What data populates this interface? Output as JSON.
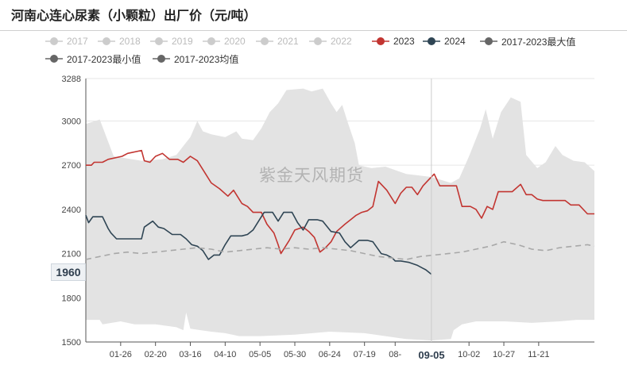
{
  "title": "河南心连心尿素（小颗粒）出厂价（元/吨）",
  "watermark": "紫金天风期货",
  "cursor": {
    "y_value": "1960",
    "x_label": "09-05"
  },
  "legend": [
    {
      "label": "2017",
      "color": "#cccccc",
      "line": false
    },
    {
      "label": "2018",
      "color": "#cccccc",
      "line": false
    },
    {
      "label": "2019",
      "color": "#cccccc",
      "line": false
    },
    {
      "label": "2020",
      "color": "#cccccc",
      "line": false
    },
    {
      "label": "2021",
      "color": "#cccccc",
      "line": false
    },
    {
      "label": "2022",
      "color": "#cccccc",
      "line": false
    },
    {
      "label": "2023",
      "color": "#c23531",
      "line": false
    },
    {
      "label": "2024",
      "color": "#2f4554",
      "line": false
    },
    {
      "label": "2017-2023最大值",
      "color": "#666666",
      "line": true
    },
    {
      "label": "2017-2023最小值",
      "color": "#666666",
      "line": true
    },
    {
      "label": "2017-2023均值",
      "color": "#666666",
      "line": true
    }
  ],
  "chart_data": {
    "type": "line",
    "ylim": [
      1500,
      3288
    ],
    "y_ticks": [
      1500,
      1800,
      2100,
      2400,
      2700,
      3000,
      3288
    ],
    "x_range": [
      0,
      365
    ],
    "x_ticks": [
      {
        "label": "01-26",
        "x": 25
      },
      {
        "label": "02-20",
        "x": 50
      },
      {
        "label": "03-16",
        "x": 75
      },
      {
        "label": "04-10",
        "x": 100
      },
      {
        "label": "05-05",
        "x": 125
      },
      {
        "label": "05-30",
        "x": 150
      },
      {
        "label": "06-24",
        "x": 175
      },
      {
        "label": "07-19",
        "x": 200
      },
      {
        "label": "08-",
        "x": 222
      },
      {
        "label": "10-02",
        "x": 275
      },
      {
        "label": "10-27",
        "x": 300
      },
      {
        "label": "11-21",
        "x": 325
      }
    ],
    "cursor_x": 248,
    "band": {
      "max": [
        [
          0,
          2980
        ],
        [
          10,
          3010
        ],
        [
          20,
          2760
        ],
        [
          40,
          2730
        ],
        [
          55,
          2740
        ],
        [
          65,
          2770
        ],
        [
          70,
          2830
        ],
        [
          75,
          2890
        ],
        [
          80,
          3000
        ],
        [
          84,
          2930
        ],
        [
          90,
          2910
        ],
        [
          100,
          2890
        ],
        [
          108,
          2930
        ],
        [
          112,
          2880
        ],
        [
          120,
          2870
        ],
        [
          126,
          2950
        ],
        [
          132,
          3060
        ],
        [
          138,
          3120
        ],
        [
          144,
          3210
        ],
        [
          156,
          3220
        ],
        [
          162,
          3200
        ],
        [
          170,
          3220
        ],
        [
          176,
          3120
        ],
        [
          180,
          3060
        ],
        [
          184,
          3110
        ],
        [
          188,
          2990
        ],
        [
          193,
          2850
        ],
        [
          196,
          2700
        ],
        [
          205,
          2680
        ],
        [
          215,
          2690
        ],
        [
          230,
          2640
        ],
        [
          248,
          2620
        ],
        [
          262,
          2580
        ],
        [
          268,
          2610
        ],
        [
          275,
          2760
        ],
        [
          283,
          2950
        ],
        [
          287,
          3080
        ],
        [
          292,
          2880
        ],
        [
          298,
          3060
        ],
        [
          305,
          3160
        ],
        [
          312,
          3130
        ],
        [
          316,
          2770
        ],
        [
          324,
          2680
        ],
        [
          330,
          2720
        ],
        [
          337,
          2830
        ],
        [
          342,
          2770
        ],
        [
          350,
          2730
        ],
        [
          358,
          2720
        ],
        [
          365,
          2660
        ]
      ],
      "min": [
        [
          0,
          1650
        ],
        [
          10,
          1650
        ],
        [
          12,
          1620
        ],
        [
          25,
          1640
        ],
        [
          35,
          1620
        ],
        [
          50,
          1620
        ],
        [
          65,
          1600
        ],
        [
          70,
          1580
        ],
        [
          72,
          1700
        ],
        [
          75,
          1590
        ],
        [
          90,
          1570
        ],
        [
          100,
          1560
        ],
        [
          110,
          1540
        ],
        [
          125,
          1540
        ],
        [
          150,
          1550
        ],
        [
          175,
          1570
        ],
        [
          200,
          1560
        ],
        [
          215,
          1540
        ],
        [
          230,
          1520
        ],
        [
          248,
          1510
        ],
        [
          262,
          1520
        ],
        [
          264,
          1580
        ],
        [
          270,
          1620
        ],
        [
          280,
          1640
        ],
        [
          300,
          1640
        ],
        [
          320,
          1630
        ],
        [
          340,
          1640
        ],
        [
          352,
          1650
        ],
        [
          365,
          1650
        ]
      ]
    },
    "series": [
      {
        "name": "2023",
        "color": "#c23531",
        "width": 1.6,
        "dash": false,
        "values": [
          [
            0,
            2700
          ],
          [
            4,
            2700
          ],
          [
            6,
            2720
          ],
          [
            12,
            2720
          ],
          [
            16,
            2740
          ],
          [
            26,
            2760
          ],
          [
            30,
            2780
          ],
          [
            40,
            2800
          ],
          [
            42,
            2730
          ],
          [
            46,
            2720
          ],
          [
            50,
            2760
          ],
          [
            55,
            2780
          ],
          [
            60,
            2740
          ],
          [
            66,
            2740
          ],
          [
            70,
            2720
          ],
          [
            75,
            2760
          ],
          [
            80,
            2730
          ],
          [
            86,
            2640
          ],
          [
            90,
            2580
          ],
          [
            96,
            2540
          ],
          [
            102,
            2490
          ],
          [
            106,
            2530
          ],
          [
            112,
            2440
          ],
          [
            116,
            2420
          ],
          [
            120,
            2380
          ],
          [
            126,
            2380
          ],
          [
            130,
            2300
          ],
          [
            135,
            2240
          ],
          [
            138,
            2160
          ],
          [
            140,
            2100
          ],
          [
            144,
            2160
          ],
          [
            146,
            2190
          ],
          [
            150,
            2260
          ],
          [
            156,
            2280
          ],
          [
            160,
            2250
          ],
          [
            164,
            2210
          ],
          [
            168,
            2110
          ],
          [
            172,
            2140
          ],
          [
            176,
            2180
          ],
          [
            180,
            2250
          ],
          [
            186,
            2300
          ],
          [
            190,
            2330
          ],
          [
            194,
            2360
          ],
          [
            198,
            2380
          ],
          [
            202,
            2390
          ],
          [
            206,
            2420
          ],
          [
            210,
            2590
          ],
          [
            216,
            2530
          ],
          [
            222,
            2440
          ],
          [
            226,
            2510
          ],
          [
            230,
            2550
          ],
          [
            234,
            2550
          ],
          [
            238,
            2500
          ],
          [
            242,
            2560
          ],
          [
            246,
            2600
          ],
          [
            250,
            2640
          ],
          [
            254,
            2560
          ],
          [
            260,
            2560
          ],
          [
            266,
            2560
          ],
          [
            270,
            2420
          ],
          [
            276,
            2420
          ],
          [
            280,
            2400
          ],
          [
            284,
            2340
          ],
          [
            288,
            2420
          ],
          [
            292,
            2400
          ],
          [
            296,
            2520
          ],
          [
            300,
            2520
          ],
          [
            306,
            2520
          ],
          [
            312,
            2570
          ],
          [
            316,
            2500
          ],
          [
            320,
            2500
          ],
          [
            324,
            2470
          ],
          [
            328,
            2460
          ],
          [
            336,
            2460
          ],
          [
            344,
            2460
          ],
          [
            348,
            2430
          ],
          [
            354,
            2430
          ],
          [
            360,
            2370
          ],
          [
            365,
            2370
          ]
        ]
      },
      {
        "name": "2024",
        "color": "#2f4554",
        "width": 1.6,
        "dash": false,
        "values": [
          [
            0,
            2360
          ],
          [
            2,
            2310
          ],
          [
            5,
            2350
          ],
          [
            12,
            2350
          ],
          [
            16,
            2270
          ],
          [
            18,
            2240
          ],
          [
            22,
            2200
          ],
          [
            32,
            2200
          ],
          [
            40,
            2200
          ],
          [
            42,
            2280
          ],
          [
            48,
            2320
          ],
          [
            52,
            2280
          ],
          [
            56,
            2270
          ],
          [
            62,
            2230
          ],
          [
            68,
            2230
          ],
          [
            72,
            2200
          ],
          [
            76,
            2160
          ],
          [
            80,
            2150
          ],
          [
            84,
            2120
          ],
          [
            88,
            2060
          ],
          [
            92,
            2090
          ],
          [
            96,
            2090
          ],
          [
            100,
            2160
          ],
          [
            104,
            2220
          ],
          [
            112,
            2220
          ],
          [
            116,
            2230
          ],
          [
            120,
            2260
          ],
          [
            124,
            2320
          ],
          [
            128,
            2380
          ],
          [
            134,
            2380
          ],
          [
            138,
            2320
          ],
          [
            142,
            2380
          ],
          [
            148,
            2380
          ],
          [
            152,
            2310
          ],
          [
            156,
            2260
          ],
          [
            160,
            2330
          ],
          [
            166,
            2330
          ],
          [
            170,
            2320
          ],
          [
            176,
            2250
          ],
          [
            182,
            2240
          ],
          [
            186,
            2180
          ],
          [
            190,
            2140
          ],
          [
            196,
            2190
          ],
          [
            202,
            2190
          ],
          [
            206,
            2180
          ],
          [
            212,
            2100
          ],
          [
            216,
            2090
          ],
          [
            220,
            2070
          ],
          [
            222,
            2050
          ],
          [
            226,
            2050
          ],
          [
            232,
            2040
          ],
          [
            238,
            2020
          ],
          [
            242,
            2000
          ],
          [
            244,
            1990
          ],
          [
            248,
            1960
          ]
        ]
      },
      {
        "name": "2017-2023均值",
        "color": "#a8a8a8",
        "width": 1.6,
        "dash": true,
        "values": [
          [
            0,
            2060
          ],
          [
            10,
            2080
          ],
          [
            20,
            2100
          ],
          [
            30,
            2110
          ],
          [
            40,
            2100
          ],
          [
            50,
            2110
          ],
          [
            60,
            2120
          ],
          [
            70,
            2130
          ],
          [
            80,
            2140
          ],
          [
            90,
            2130
          ],
          [
            100,
            2110
          ],
          [
            110,
            2120
          ],
          [
            120,
            2130
          ],
          [
            130,
            2140
          ],
          [
            140,
            2130
          ],
          [
            150,
            2140
          ],
          [
            160,
            2130
          ],
          [
            170,
            2140
          ],
          [
            180,
            2130
          ],
          [
            190,
            2120
          ],
          [
            200,
            2100
          ],
          [
            210,
            2080
          ],
          [
            220,
            2070
          ],
          [
            230,
            2060
          ],
          [
            240,
            2080
          ],
          [
            250,
            2090
          ],
          [
            260,
            2100
          ],
          [
            270,
            2110
          ],
          [
            280,
            2130
          ],
          [
            290,
            2150
          ],
          [
            300,
            2180
          ],
          [
            310,
            2160
          ],
          [
            320,
            2130
          ],
          [
            330,
            2120
          ],
          [
            340,
            2140
          ],
          [
            350,
            2150
          ],
          [
            360,
            2160
          ],
          [
            365,
            2150
          ]
        ]
      }
    ]
  }
}
